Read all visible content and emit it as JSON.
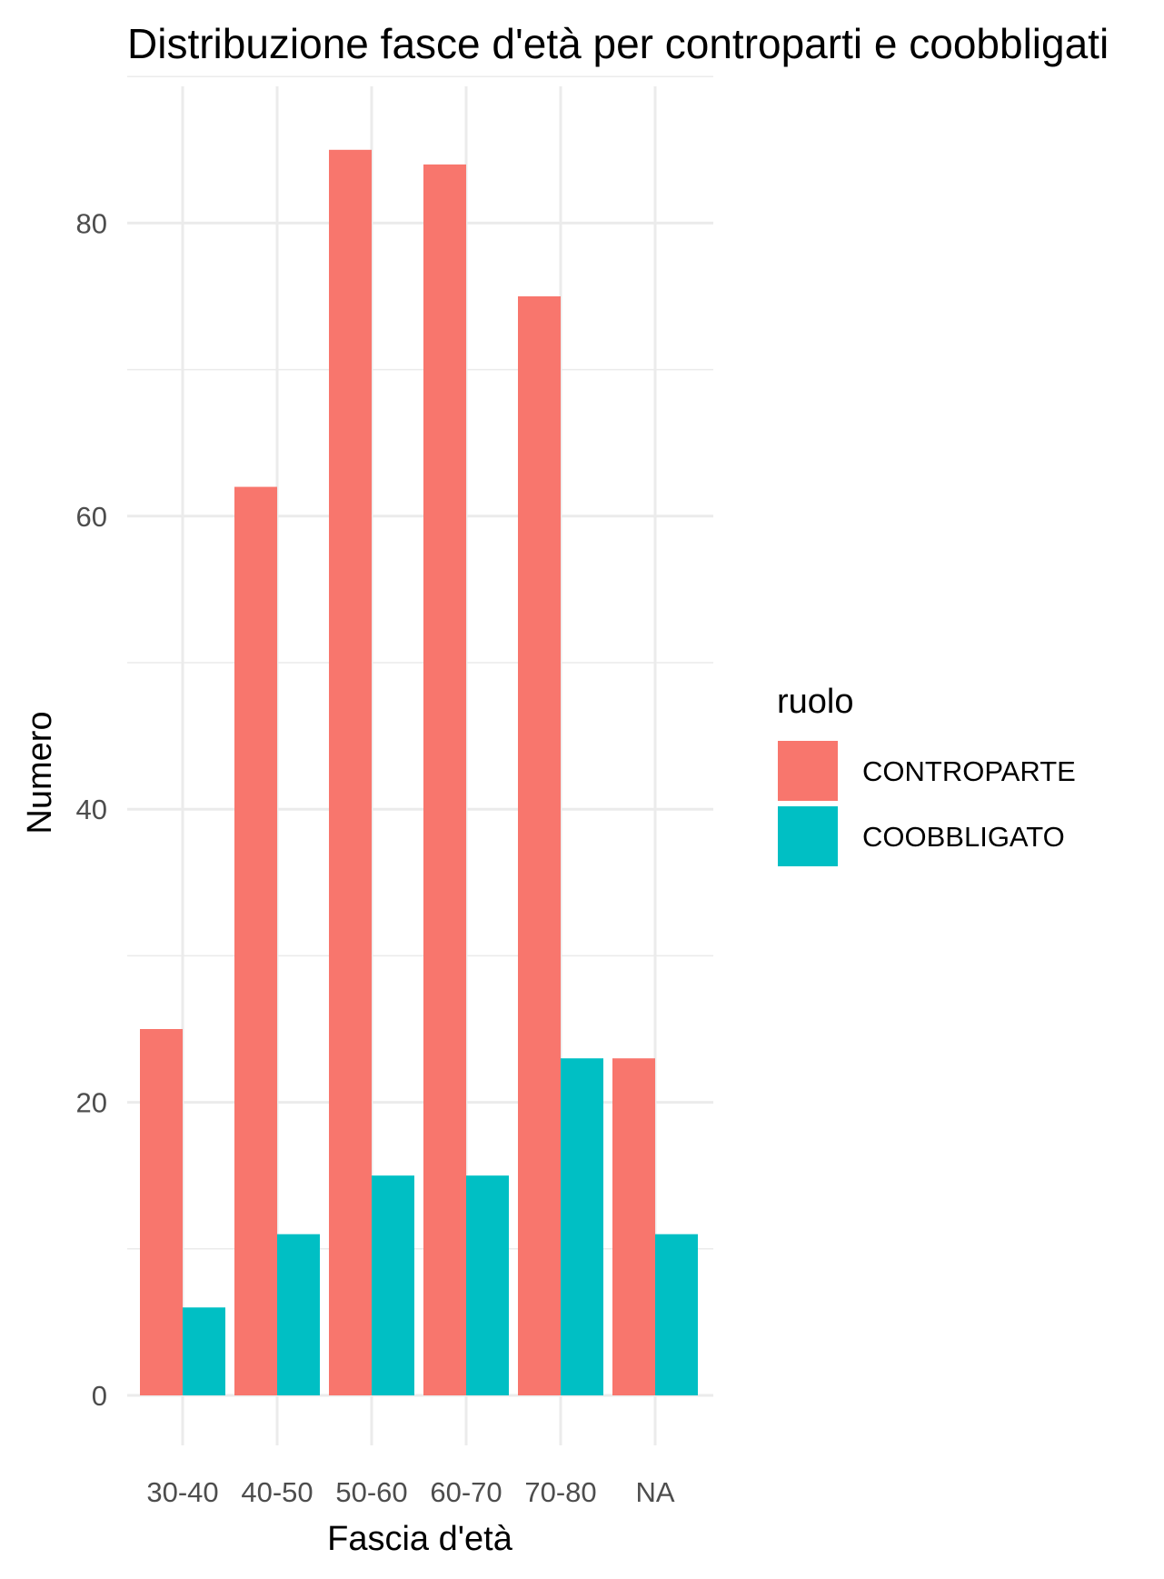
{
  "chart_data": {
    "type": "bar",
    "title": "Distribuzione fasce d'età per controparti e coobbligati",
    "xlabel": "Fascia d'età",
    "ylabel": "Numero",
    "categories": [
      "30-40",
      "40-50",
      "50-60",
      "60-70",
      "70-80",
      "NA"
    ],
    "series": [
      {
        "name": "CONTROPARTE",
        "color": "#F8766D",
        "values": [
          25,
          62,
          85,
          84,
          75,
          23
        ]
      },
      {
        "name": "COOBBLIGATO",
        "color": "#00BFC4",
        "values": [
          6,
          11,
          15,
          15,
          23,
          11
        ]
      }
    ],
    "yticks": [
      0,
      20,
      40,
      60,
      80
    ],
    "ylim": [
      0,
      85
    ],
    "grid": true,
    "legend": {
      "title": "ruolo",
      "position": "right"
    }
  }
}
